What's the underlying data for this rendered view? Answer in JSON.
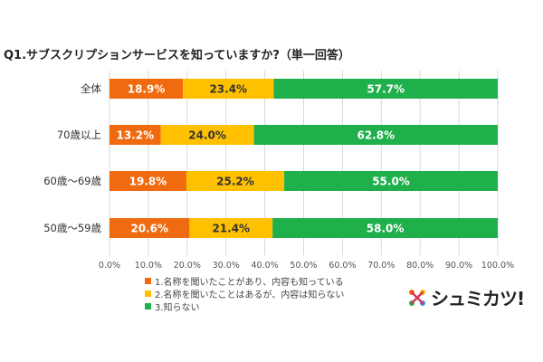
{
  "title": "Q1.サブスクリプションサービスを知っていますか?（単一回答）",
  "chart_data": {
    "type": "bar",
    "orientation": "horizontal",
    "stacked": true,
    "categories": [
      "全体",
      "70歳以上",
      "60歳～69歳",
      "50歳～59歳"
    ],
    "series": [
      {
        "name": "1.名称を聞いたことがあり、内容も知っている",
        "color": "#f06a0f",
        "values": [
          18.9,
          13.2,
          19.8,
          20.6
        ],
        "labels": [
          "18.9%",
          "13.2%",
          "19.8%",
          "20.6%"
        ]
      },
      {
        "name": "2.名称を聞いたことはあるが、内容は知らない",
        "color": "#ffc000",
        "values": [
          23.4,
          24.0,
          25.2,
          21.4
        ],
        "labels": [
          "23.4%",
          "24.0%",
          "25.2%",
          "21.4%"
        ]
      },
      {
        "name": "3.知らない",
        "color": "#1faf4b",
        "values": [
          57.7,
          62.8,
          55.0,
          58.0
        ],
        "labels": [
          "57.7%",
          "62.8%",
          "55.0%",
          "58.0%"
        ]
      }
    ],
    "xlim": [
      0,
      100
    ],
    "xticks": [
      "0.0%",
      "10.0%",
      "20.0%",
      "30.0%",
      "40.0%",
      "50.0%",
      "60.0%",
      "70.0%",
      "80.0%",
      "90.0%",
      "100.0%"
    ],
    "grid": true,
    "legend_position": "bottom"
  },
  "logo": {
    "text": "シュミカツ!"
  }
}
